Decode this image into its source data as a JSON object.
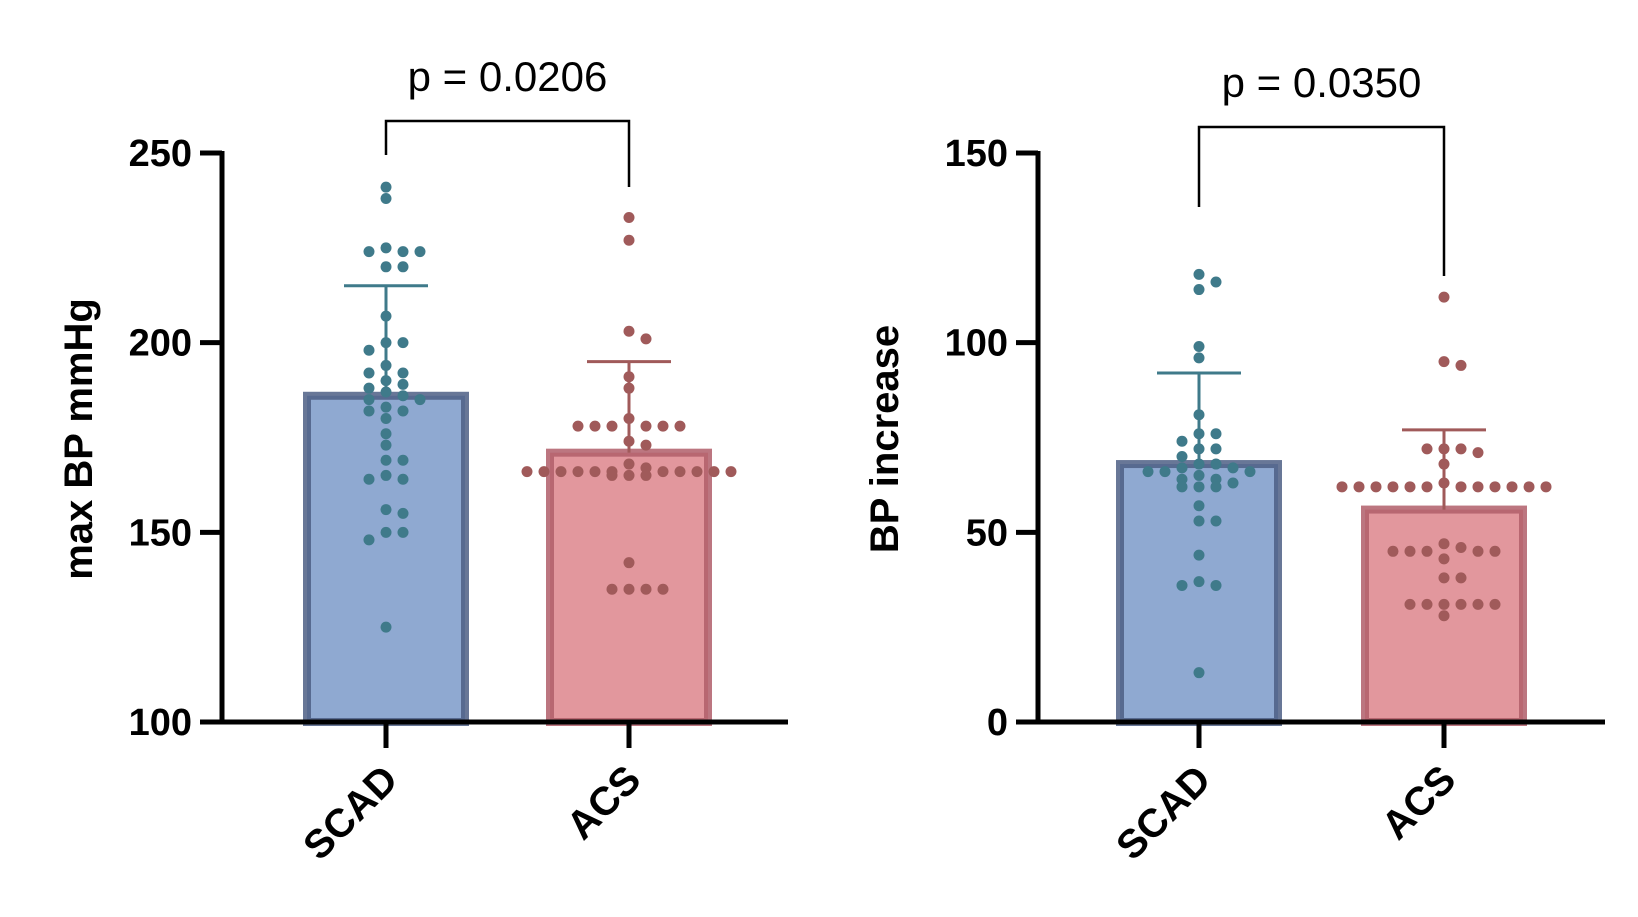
{
  "chart_data": [
    {
      "type": "bar",
      "categories": [
        "SCAD",
        "ACS"
      ],
      "ylabel": "max BP mmHg",
      "xlabel": "",
      "ylim": [
        100,
        250
      ],
      "yticks": [
        100,
        150,
        200,
        250
      ],
      "grid": false,
      "bars": [
        {
          "category": "SCAD",
          "mean": 186,
          "sd_upper": 215,
          "fill": "#8fa9d1",
          "stroke": "#4d5f85",
          "dot": "#3f7a8a"
        },
        {
          "category": "ACS",
          "mean": 171,
          "sd_upper": 195,
          "fill": "#e2979d",
          "stroke": "#b05e6a",
          "dot": "#a05a5a"
        }
      ],
      "points": {
        "SCAD": [
          241,
          238,
          225,
          224,
          224,
          224,
          220,
          220,
          207,
          200,
          200,
          198,
          194,
          192,
          192,
          190,
          189,
          188,
          187,
          186,
          185,
          185,
          183,
          182,
          182,
          180,
          176,
          173,
          169,
          169,
          165,
          164,
          164,
          156,
          155,
          150,
          150,
          148,
          125
        ],
        "ACS": [
          233,
          227,
          203,
          201,
          191,
          188,
          180,
          178,
          178,
          178,
          178,
          178,
          178,
          174,
          173,
          168,
          167,
          166,
          166,
          166,
          166,
          166,
          166,
          166,
          166,
          166,
          166,
          166,
          165,
          165,
          165,
          142,
          135,
          135,
          135,
          135
        ]
      },
      "comparison": {
        "from": "SCAD",
        "to": "ACS",
        "label": "p = 0.0206"
      }
    },
    {
      "type": "bar",
      "categories": [
        "SCAD",
        "ACS"
      ],
      "ylabel": "BP increase",
      "xlabel": "",
      "ylim": [
        0,
        150
      ],
      "yticks": [
        0,
        50,
        100,
        150
      ],
      "grid": false,
      "bars": [
        {
          "category": "SCAD",
          "mean": 68,
          "sd_upper": 92,
          "fill": "#8fa9d1",
          "stroke": "#4d5f85",
          "dot": "#3f7a8a"
        },
        {
          "category": "ACS",
          "mean": 56,
          "sd_upper": 77,
          "fill": "#e2979d",
          "stroke": "#b05e6a",
          "dot": "#a05a5a"
        }
      ],
      "points": {
        "SCAD": [
          118,
          116,
          114,
          99,
          96,
          81,
          76,
          76,
          74,
          72,
          72,
          70,
          68,
          68,
          67,
          67,
          66,
          66,
          66,
          65,
          64,
          64,
          63,
          62,
          62,
          62,
          57,
          53,
          53,
          44,
          37,
          36,
          36,
          13
        ],
        "ACS": [
          112,
          95,
          94,
          72,
          72,
          72,
          71,
          68,
          63,
          62,
          62,
          62,
          62,
          62,
          62,
          62,
          62,
          62,
          62,
          62,
          62,
          47,
          46,
          45,
          45,
          45,
          45,
          45,
          43,
          38,
          38,
          31,
          31,
          31,
          31,
          31,
          31,
          28
        ]
      },
      "comparison": {
        "from": "SCAD",
        "to": "ACS",
        "label": "p = 0.0350"
      }
    }
  ]
}
